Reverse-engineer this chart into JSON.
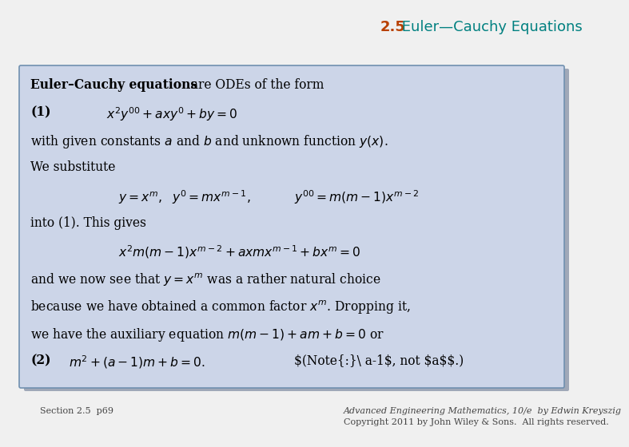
{
  "title_number": "2.5",
  "title_text": " Euler—Cauchy Equations",
  "title_color_number": "#b84000",
  "title_color_text": "#008080",
  "bg_color": "#f0f0f0",
  "box_bg_color": "#ccd5e8",
  "box_edge_color": "#7090b0",
  "shadow_color": "#a0a8b8",
  "text_color": "#000000",
  "footer_left": "Section 2.5  p69",
  "footer_right_line1": "Advanced Engineering Mathematics, 10/e  by Edwin Kreyszig",
  "footer_right_line2": "Copyright 2011 by John Wiley & Sons.  All rights reserved.",
  "title_fontsize": 13,
  "body_fontsize": 11.2,
  "footer_fontsize": 8.0
}
